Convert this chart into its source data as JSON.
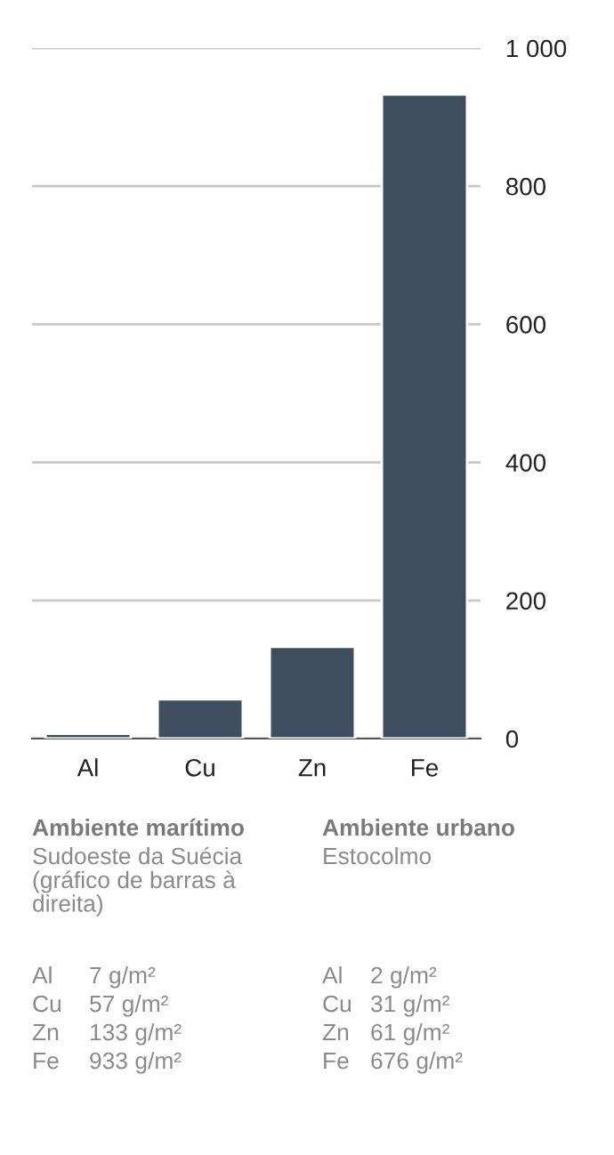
{
  "chart_data": {
    "type": "bar",
    "categories": [
      "Al",
      "Cu",
      "Zn",
      "Fe"
    ],
    "values": [
      7,
      57,
      133,
      933
    ],
    "color": "#3f4e5e",
    "ylim": [
      0,
      1000
    ],
    "yticks": [
      0,
      200,
      400,
      600,
      800,
      {
        "value": 1000,
        "label": "1 000"
      }
    ],
    "grid": "y",
    "annotations": [
      "Ambiente marítimo",
      "Sudoeste da Suécia\n(gráfico de barras à\ndireita)",
      "Ambiente urbano",
      "Estocolmo",
      "Al",
      "7 g/m²",
      "Al",
      "2 g/m²",
      "Cu",
      "57 g/m²",
      "Cu",
      "31 g/m²",
      "Zn",
      "133 g/m²",
      "Zn",
      "61 g/m²",
      "Fe",
      "933 g/m²",
      "Fe",
      "676 g/m²"
    ]
  }
}
